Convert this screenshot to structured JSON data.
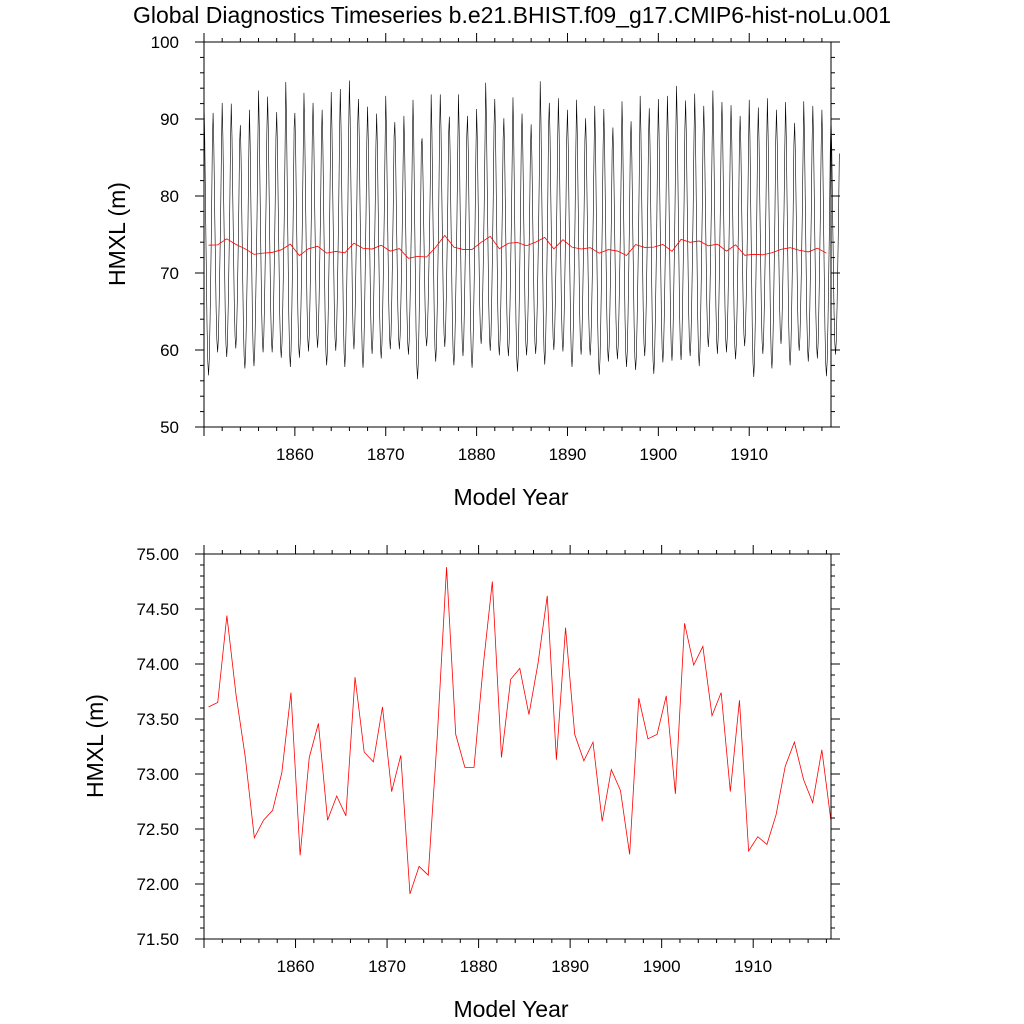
{
  "title": "Global Diagnostics Timeseries b.e21.BHIST.f09_g17.CMIP6-hist-noLu.001",
  "colors": {
    "monthly_line": "#000000",
    "annual_line": "#ff0000",
    "frame": "#000000",
    "background": "#ffffff"
  },
  "chart_data": [
    {
      "type": "line",
      "title": "Global Diagnostics Timeseries b.e21.BHIST.f09_g17.CMIP6-hist-noLu.001",
      "xlabel": "Model Year",
      "ylabel": "HMXL (m)",
      "xlim": [
        1850,
        1919
      ],
      "ylim": [
        50,
        100
      ],
      "x_ticks": [
        1860,
        1870,
        1880,
        1890,
        1900,
        1910
      ],
      "y_ticks": [
        50,
        60,
        70,
        80,
        90,
        100
      ],
      "y_tick_labels": [
        "50",
        "60",
        "70",
        "80",
        "90",
        "100"
      ],
      "grid": false,
      "series": [
        {
          "color": "#000000",
          "resolution": "monthly",
          "description_values": "monthly values oscillating each year between a winter maximum and a summer minimum",
          "x_start": 1850.0,
          "step": 0.0833333,
          "annual_maxima": [
            92.4,
            90.8,
            92.1,
            92.0,
            89.2,
            91.2,
            93.7,
            92.9,
            90.9,
            94.8,
            90.8,
            93.4,
            92.1,
            91.2,
            93.5,
            93.9,
            95.0,
            92.6,
            91.6,
            90.7,
            93.0,
            89.6,
            90.4,
            92.5,
            87.5,
            93.2,
            93.2,
            90.3,
            93.2,
            90.4,
            91.3,
            94.7,
            92.6,
            90.1,
            92.8,
            90.7,
            89.3,
            94.9,
            92.1,
            92.7,
            91.2,
            92.5,
            90.1,
            91.7,
            91.3,
            88.9,
            92.3,
            89.7,
            93.0,
            91.4,
            92.6,
            93.0,
            94.3,
            92.4,
            93.3,
            91.7,
            93.7,
            92.2,
            91.8,
            90.4,
            92.5,
            91.5,
            92.7,
            91.2,
            92.2,
            89.5,
            92.3,
            91.7,
            91.2,
            90.5
          ],
          "annual_minima": [
            56.7,
            59.7,
            59.1,
            60.2,
            57.6,
            57.9,
            59.7,
            59.7,
            59.0,
            57.8,
            59.0,
            59.8,
            60.3,
            58.0,
            59.9,
            57.8,
            60.1,
            57.7,
            59.5,
            58.9,
            60.1,
            60.1,
            59.4,
            56.2,
            60.5,
            58.5,
            60.4,
            58.0,
            59.2,
            57.7,
            60.8,
            59.9,
            59.3,
            59.2,
            57.2,
            59.3,
            59.5,
            58.1,
            60.0,
            59.8,
            57.8,
            59.4,
            59.3,
            56.8,
            58.5,
            58.8,
            57.8,
            57.4,
            59.2,
            56.9,
            58.4,
            58.6,
            58.7,
            59.2,
            57.9,
            60.4,
            59.5,
            59.7,
            58.8,
            60.5,
            56.5,
            59.5,
            57.6,
            60.8,
            58.0,
            59.9,
            58.5,
            58.9,
            56.6,
            59.4
          ]
        },
        {
          "color": "#ff0000",
          "resolution": "annual",
          "x_start": 1850.5,
          "step": 1,
          "values": [
            73.61,
            73.65,
            74.44,
            73.72,
            73.16,
            72.42,
            72.58,
            72.67,
            73.01,
            73.74,
            72.26,
            73.15,
            73.46,
            72.58,
            72.8,
            72.62,
            73.88,
            73.2,
            73.11,
            73.61,
            72.84,
            73.17,
            71.91,
            72.16,
            72.08,
            73.36,
            74.88,
            73.36,
            73.06,
            73.06,
            73.98,
            74.75,
            73.15,
            73.86,
            73.96,
            73.54,
            74.01,
            74.62,
            73.13,
            74.33,
            73.36,
            73.12,
            73.29,
            72.57,
            73.04,
            72.85,
            72.27,
            73.69,
            73.32,
            73.36,
            73.71,
            72.82,
            74.37,
            73.99,
            74.16,
            73.53,
            73.74,
            72.84,
            73.67,
            72.3,
            72.43,
            72.36,
            72.63,
            73.07,
            73.29,
            72.95,
            72.74,
            73.22,
            72.57
          ]
        }
      ]
    },
    {
      "type": "line",
      "xlabel": "Model Year",
      "ylabel": "HMXL (m)",
      "xlim": [
        1850,
        1918.5
      ],
      "ylim": [
        71.5,
        75.0
      ],
      "x_ticks": [
        1860,
        1870,
        1880,
        1890,
        1900,
        1910
      ],
      "y_ticks": [
        71.5,
        72.0,
        72.5,
        73.0,
        73.5,
        74.0,
        74.5,
        75.0
      ],
      "y_tick_labels": [
        "71.50",
        "72.00",
        "72.50",
        "73.00",
        "73.50",
        "74.00",
        "74.50",
        "75.00"
      ],
      "grid": false,
      "series": [
        {
          "color": "#ff0000",
          "resolution": "annual",
          "x_start": 1850.5,
          "step": 1,
          "values": [
            73.61,
            73.65,
            74.44,
            73.72,
            73.16,
            72.42,
            72.58,
            72.67,
            73.01,
            73.74,
            72.26,
            73.15,
            73.46,
            72.58,
            72.8,
            72.62,
            73.88,
            73.2,
            73.11,
            73.61,
            72.84,
            73.17,
            71.91,
            72.16,
            72.08,
            73.36,
            74.88,
            73.36,
            73.06,
            73.06,
            73.98,
            74.75,
            73.15,
            73.86,
            73.96,
            73.54,
            74.01,
            74.62,
            73.13,
            74.33,
            73.36,
            73.12,
            73.29,
            72.57,
            73.04,
            72.85,
            72.27,
            73.69,
            73.32,
            73.36,
            73.71,
            72.82,
            74.37,
            73.99,
            74.16,
            73.53,
            73.74,
            72.84,
            73.67,
            72.3,
            72.43,
            72.36,
            72.63,
            73.07,
            73.29,
            72.95,
            72.74,
            73.22,
            72.57
          ]
        }
      ]
    }
  ]
}
